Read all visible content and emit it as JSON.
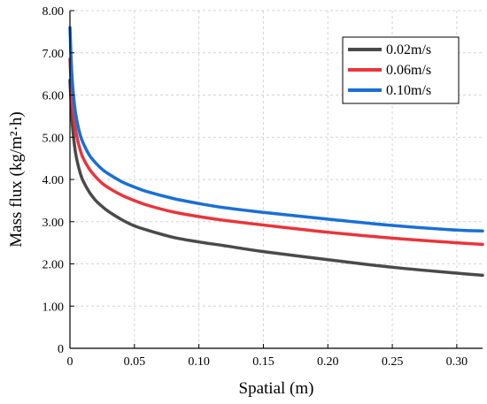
{
  "chart_data": {
    "type": "line",
    "xlabel": "Spatial (m)",
    "ylabel": "Mass flux (kg/m²·h)",
    "xlim": [
      0,
      0.32
    ],
    "ylim": [
      0,
      8
    ],
    "x_ticks": [
      "0",
      "0.05",
      "0.10",
      "0.15",
      "0.20",
      "0.25",
      "0.30"
    ],
    "x_tick_values": [
      0,
      0.05,
      0.1,
      0.15,
      0.2,
      0.25,
      0.3
    ],
    "y_ticks": [
      "0",
      "1.00",
      "2.00",
      "3.00",
      "4.00",
      "5.00",
      "6.00",
      "7.00",
      "8.00"
    ],
    "y_tick_values": [
      0,
      1,
      2,
      3,
      4,
      5,
      6,
      7,
      8
    ],
    "grid": "dashed",
    "legend_position": "top-right",
    "x": [
      0,
      0.001,
      0.002,
      0.004,
      0.006,
      0.008,
      0.01,
      0.015,
      0.02,
      0.025,
      0.03,
      0.04,
      0.05,
      0.06,
      0.08,
      0.1,
      0.12,
      0.15,
      0.2,
      0.25,
      0.3,
      0.32
    ],
    "series": [
      {
        "name": "0.02m/s",
        "color": "#4a4a4a",
        "values": [
          6.35,
          5.75,
          5.25,
          4.7,
          4.38,
          4.15,
          3.98,
          3.7,
          3.5,
          3.36,
          3.24,
          3.05,
          2.9,
          2.8,
          2.63,
          2.52,
          2.43,
          2.29,
          2.1,
          1.92,
          1.78,
          1.73
        ]
      },
      {
        "name": "0.06m/s",
        "color": "#e8353b",
        "values": [
          6.85,
          6.25,
          5.8,
          5.25,
          4.93,
          4.7,
          4.52,
          4.25,
          4.06,
          3.91,
          3.8,
          3.63,
          3.5,
          3.39,
          3.23,
          3.12,
          3.03,
          2.92,
          2.75,
          2.61,
          2.5,
          2.46
        ]
      },
      {
        "name": "0.10m/s",
        "color": "#1a6fd6",
        "values": [
          7.6,
          6.8,
          6.25,
          5.65,
          5.3,
          5.05,
          4.88,
          4.58,
          4.39,
          4.24,
          4.13,
          3.95,
          3.82,
          3.71,
          3.55,
          3.43,
          3.33,
          3.22,
          3.06,
          2.91,
          2.8,
          2.78
        ]
      }
    ]
  }
}
